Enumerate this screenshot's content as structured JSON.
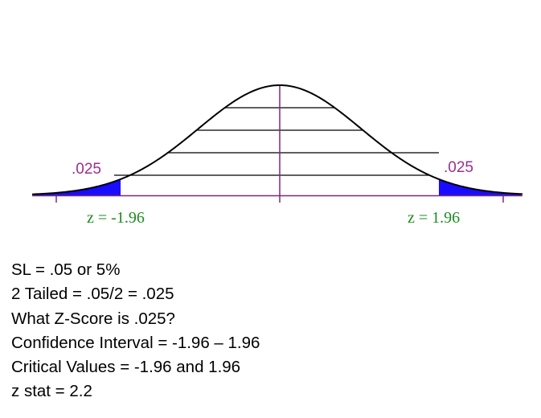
{
  "diagram": {
    "curve": "standard-normal",
    "tail_area_left": 0.025,
    "tail_area_right": 0.025,
    "critical_z_left": -1.96,
    "critical_z_right": 1.96,
    "left_tail_label": ".025",
    "right_tail_label": ".025",
    "left_z_label": "z = -1.96",
    "right_z_label": "z = 1.96",
    "colors": {
      "curve": "#000000",
      "tail_fill": "#1a0dff",
      "center_line": "#7a2a7a",
      "baseline": "#7a2a7a",
      "tail_label": "#9b2f8f",
      "z_label": "#1f8a1f"
    }
  },
  "notes": [
    "SL = .05 or 5%",
    "2 Tailed = .05/2 = .025",
    "What Z-Score is .025?",
    "Confidence Interval = -1.96 – 1.96",
    "Critical Values = -1.96 and 1.96",
    "z stat = 2.2"
  ]
}
